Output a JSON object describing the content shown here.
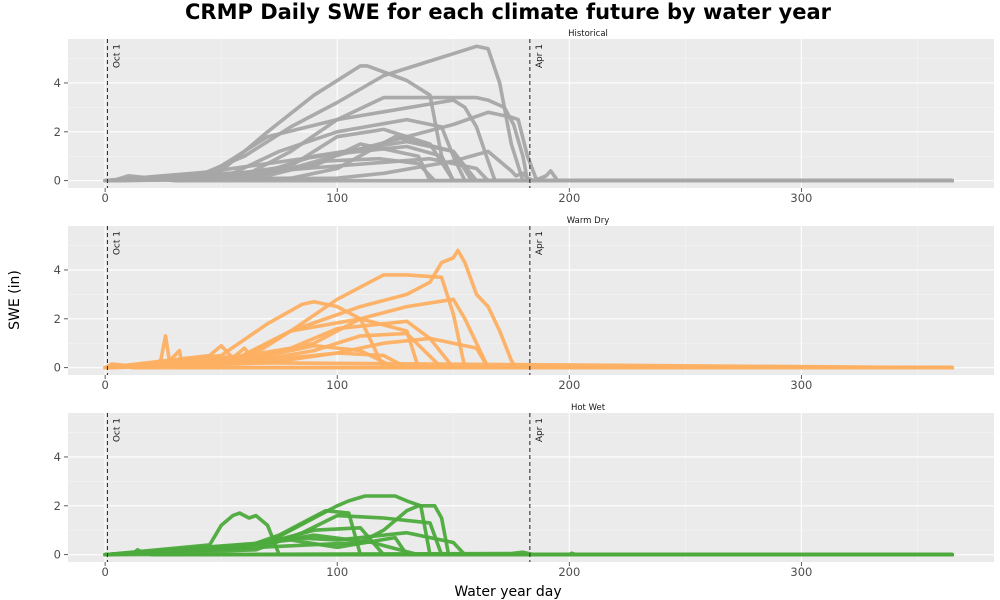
{
  "chart_data": {
    "type": "line",
    "title": "CRMP Daily SWE for each climate future by water year",
    "xlabel": "Water year day",
    "ylabel": "SWE (in)",
    "xlim": [
      -16,
      383
    ],
    "ylim": [
      -0.3,
      5.8
    ],
    "x_ticks": [
      0,
      100,
      200,
      300
    ],
    "y_ticks": [
      0,
      2,
      4
    ],
    "grid": true,
    "legend": "none",
    "reference_lines": [
      {
        "x": 1,
        "label": "Oct 1",
        "style": "dashed"
      },
      {
        "x": 183,
        "label": "Apr 1",
        "style": "dashed"
      }
    ],
    "panels": [
      {
        "name": "Historical",
        "color": "#a6a6a6",
        "series": [
          {
            "x": [
              0,
              40,
              60,
              80,
              100,
              120,
              140,
              150,
              160,
              165,
              170,
              175,
              180,
              365
            ],
            "y": [
              0,
              0.2,
              1.0,
              2.2,
              3.2,
              4.3,
              4.9,
              5.2,
              5.5,
              5.4,
              4.0,
              1.5,
              0,
              0
            ]
          },
          {
            "x": [
              0,
              50,
              70,
              90,
              110,
              113,
              130,
              140,
              145,
              150,
              365
            ],
            "y": [
              0,
              0.4,
              2.0,
              3.5,
              4.7,
              4.7,
              4.1,
              3.5,
              1.0,
              0,
              0
            ]
          },
          {
            "x": [
              0,
              45,
              70,
              100,
              120,
              160,
              165,
              172,
              176,
              180,
              182,
              365
            ],
            "y": [
              0,
              0.3,
              1.8,
              2.5,
              3.4,
              3.4,
              3.3,
              3.0,
              2.3,
              1.0,
              0,
              0
            ]
          },
          {
            "x": [
              0,
              60,
              80,
              100,
              150,
              155,
              160,
              165,
              168,
              365
            ],
            "y": [
              0,
              0.2,
              1.2,
              2.5,
              3.3,
              3.0,
              2.2,
              0.8,
              0,
              0
            ]
          },
          {
            "x": [
              0,
              60,
              80,
              110,
              150,
              165,
              175,
              178,
              182,
              186,
              365
            ],
            "y": [
              0,
              0.1,
              0.5,
              1.3,
              2.3,
              2.8,
              2.6,
              2.5,
              1.0,
              0,
              0
            ]
          },
          {
            "x": [
              0,
              55,
              75,
              100,
              130,
              145,
              150,
              155,
              365
            ],
            "y": [
              0,
              0.3,
              1.2,
              2.0,
              2.5,
              2.2,
              1.0,
              0,
              0
            ]
          },
          {
            "x": [
              0,
              50,
              80,
              100,
              120,
              140,
              150,
              365
            ],
            "y": [
              0,
              0.2,
              0.6,
              1.8,
              2.1,
              1.5,
              0,
              0
            ]
          },
          {
            "x": [
              0,
              70,
              90,
              110,
              130,
              150,
              160,
              365
            ],
            "y": [
              0,
              0.4,
              1.0,
              1.3,
              1.6,
              1.2,
              0,
              0
            ]
          },
          {
            "x": [
              0,
              40,
              70,
              100,
              130,
              145,
              150,
              365
            ],
            "y": [
              0,
              0.3,
              0.7,
              1.1,
              1.4,
              1.0,
              0,
              0
            ]
          },
          {
            "x": [
              0,
              60,
              90,
              110,
              135,
              140,
              365
            ],
            "y": [
              0,
              0.2,
              0.6,
              1.5,
              1.0,
              0,
              0
            ]
          },
          {
            "x": [
              0,
              80,
              100,
              125,
              150,
              158,
              365
            ],
            "y": [
              0,
              0.1,
              0.5,
              1.8,
              1.2,
              0,
              0
            ]
          },
          {
            "x": [
              0,
              70,
              95,
              118,
              135,
              142,
              365
            ],
            "y": [
              0,
              0.2,
              0.8,
              0.9,
              0.7,
              0,
              0
            ]
          },
          {
            "x": [
              0,
              30,
              60,
              100,
              140,
              160,
              165,
              365
            ],
            "y": [
              0,
              0.1,
              0.3,
              0.6,
              0.9,
              0.5,
              0,
              0
            ]
          },
          {
            "x": [
              0,
              100,
              120,
              150,
              165,
              175,
              177,
              180,
              182,
              185,
              190,
              192,
              195,
              365
            ],
            "y": [
              0,
              0.1,
              0.3,
              0.8,
              1.2,
              0.4,
              0.2,
              0.3,
              0.1,
              0,
              0.2,
              0.4,
              0,
              0
            ]
          },
          {
            "x": [
              0,
              5,
              10,
              20,
              30,
              365
            ],
            "y": [
              0,
              0.05,
              0.2,
              0.1,
              0,
              0
            ]
          }
        ]
      },
      {
        "name": "Warm Dry",
        "color": "#fdb062",
        "series": [
          {
            "x": [
              0,
              60,
              80,
              110,
              130,
              140,
              145,
              150,
              152,
              155,
              160,
              165,
              170,
              175,
              177,
              365
            ],
            "y": [
              0,
              0.5,
              1.5,
              2.5,
              3.0,
              3.5,
              4.3,
              4.5,
              4.8,
              4.3,
              3.0,
              2.5,
              1.5,
              0.3,
              0,
              0
            ]
          },
          {
            "x": [
              0,
              60,
              80,
              100,
              120,
              130,
              145,
              150,
              155,
              365
            ],
            "y": [
              0,
              0.3,
              1.5,
              2.8,
              3.8,
              3.8,
              3.7,
              2.2,
              0,
              0
            ]
          },
          {
            "x": [
              0,
              50,
              70,
              85,
              90,
              100,
              110,
              115,
              120,
              365
            ],
            "y": [
              0,
              0.5,
              1.8,
              2.6,
              2.7,
              2.5,
              2.0,
              1.0,
              0,
              0
            ]
          },
          {
            "x": [
              0,
              60,
              90,
              110,
              130,
              150,
              155,
              165,
              365
            ],
            "y": [
              0,
              0.3,
              1.0,
              2.0,
              2.5,
              2.8,
              2.0,
              0,
              0
            ]
          },
          {
            "x": [
              0,
              55,
              80,
              110,
              130,
              135,
              365
            ],
            "y": [
              0,
              0.3,
              1.5,
              2.0,
              1.5,
              0,
              0
            ]
          },
          {
            "x": [
              0,
              55,
              80,
              100,
              130,
              140,
              150,
              365
            ],
            "y": [
              0,
              0.4,
              0.8,
              1.6,
              1.9,
              1.2,
              0,
              0
            ]
          },
          {
            "x": [
              0,
              60,
              90,
              110,
              130,
              145,
              365
            ],
            "y": [
              0,
              0.2,
              0.7,
              1.3,
              1.4,
              0,
              0
            ]
          },
          {
            "x": [
              0,
              70,
              100,
              120,
              140,
              160,
              165,
              365
            ],
            "y": [
              0,
              0.2,
              0.6,
              1.0,
              1.2,
              0.8,
              0,
              0
            ]
          },
          {
            "x": [
              0,
              50,
              70,
              90,
              110,
              125,
              365
            ],
            "y": [
              0,
              0.2,
              0.5,
              0.9,
              0.7,
              0,
              0
            ]
          },
          {
            "x": [
              0,
              60,
              80,
              100,
              120,
              130,
              365
            ],
            "y": [
              0,
              0.3,
              0.4,
              0.6,
              0.5,
              0,
              0
            ]
          },
          {
            "x": [
              0,
              20,
              24,
              26,
              28,
              32,
              365
            ],
            "y": [
              0,
              0.1,
              0.3,
              1.3,
              0.1,
              0,
              0
            ]
          },
          {
            "x": [
              0,
              25,
              30,
              32,
              33,
              38,
              365
            ],
            "y": [
              0,
              0.05,
              0.5,
              0.7,
              0.2,
              0,
              0
            ]
          },
          {
            "x": [
              0,
              45,
              50,
              55,
              60,
              65,
              365
            ],
            "y": [
              0,
              0.5,
              0.9,
              0.4,
              0.8,
              0.2,
              0
            ]
          },
          {
            "x": [
              0,
              3,
              8,
              12,
              365
            ],
            "y": [
              0,
              0.15,
              0.1,
              0,
              0
            ]
          }
        ]
      },
      {
        "name": "Hot Wet",
        "color": "#4daa3d",
        "series": [
          {
            "x": [
              0,
              70,
              90,
              100,
              105,
              112,
              125,
              130,
              136,
              140,
              365
            ],
            "y": [
              0,
              0.5,
              1.5,
              2.0,
              2.2,
              2.4,
              2.4,
              2.2,
              2.0,
              0,
              0
            ]
          },
          {
            "x": [
              0,
              110,
              120,
              130,
              135,
              142,
              145,
              148,
              365
            ],
            "y": [
              0,
              0.5,
              1.0,
              1.8,
              2.0,
              2.0,
              1.5,
              0,
              0
            ]
          },
          {
            "x": [
              0,
              45,
              50,
              55,
              58,
              62,
              65,
              70,
              75,
              365
            ],
            "y": [
              0,
              0.4,
              1.2,
              1.6,
              1.7,
              1.5,
              1.6,
              1.2,
              0,
              0
            ]
          },
          {
            "x": [
              0,
              60,
              75,
              85,
              95,
              105,
              110,
              365
            ],
            "y": [
              0,
              0.3,
              0.8,
              1.3,
              1.8,
              1.7,
              0,
              0
            ]
          },
          {
            "x": [
              0,
              65,
              85,
              100,
              120,
              140,
              145,
              365
            ],
            "y": [
              0,
              0.2,
              0.9,
              1.6,
              1.5,
              1.3,
              0,
              0
            ]
          },
          {
            "x": [
              0,
              50,
              70,
              90,
              110,
              120,
              365
            ],
            "y": [
              0,
              0.3,
              0.5,
              1.0,
              1.1,
              0,
              0
            ]
          },
          {
            "x": [
              0,
              55,
              80,
              100,
              130,
              150,
              155,
              365
            ],
            "y": [
              0,
              0.3,
              0.7,
              0.6,
              0.9,
              0.5,
              0,
              0
            ]
          },
          {
            "x": [
              0,
              45,
              65,
              90,
              115,
              135,
              365
            ],
            "y": [
              0,
              0.2,
              0.4,
              0.8,
              0.5,
              0,
              0
            ]
          },
          {
            "x": [
              0,
              60,
              80,
              100,
              125,
              130,
              365
            ],
            "y": [
              0,
              0.4,
              0.6,
              0.3,
              0.7,
              0,
              0
            ]
          },
          {
            "x": [
              0,
              12,
              14,
              16,
              20,
              365
            ],
            "y": [
              0,
              0.05,
              0.2,
              0.1,
              0,
              0
            ]
          },
          {
            "x": [
              0,
              175,
              180,
              185,
              200,
              201,
              203,
              365
            ],
            "y": [
              0,
              0.05,
              0.1,
              0,
              0,
              0.06,
              0,
              0
            ]
          }
        ]
      }
    ]
  }
}
